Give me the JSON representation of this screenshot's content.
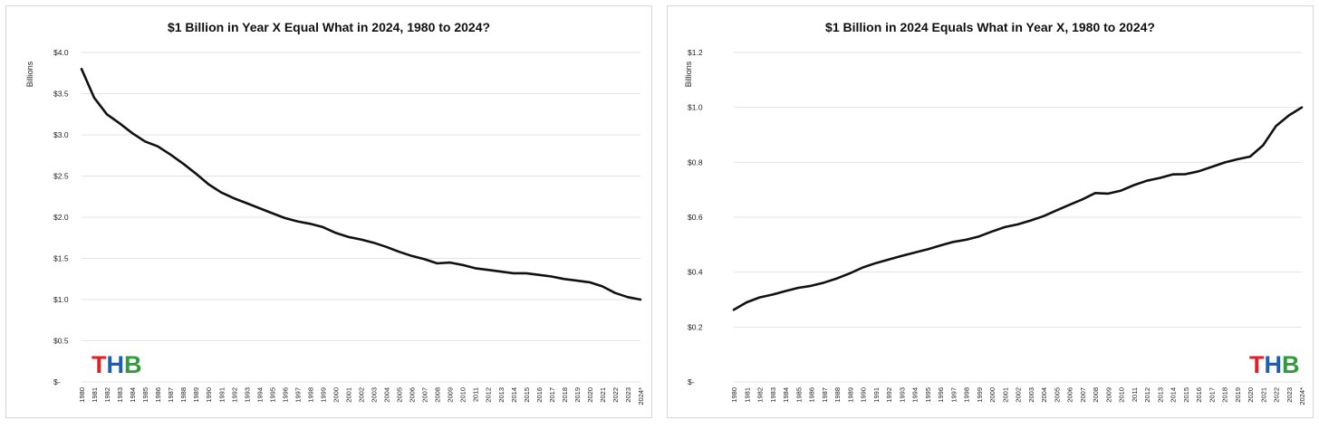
{
  "chart_data": [
    {
      "type": "line",
      "title": "$1 Billion in Year X Equal What in 2024, 1980 to 2024?",
      "ylabel": "Billions",
      "xlabel": "",
      "ylim": [
        0,
        4
      ],
      "yticks": [
        0,
        0.5,
        1.0,
        1.5,
        2.0,
        2.5,
        3.0,
        3.5,
        4.0
      ],
      "ytick_labels": [
        "$-",
        "$0.5",
        "$1.0",
        "$1.5",
        "$2.0",
        "$2.5",
        "$3.0",
        "$3.5",
        "$4.0"
      ],
      "x": [
        "1980",
        "1981",
        "1982",
        "1983",
        "1984",
        "1985",
        "1986",
        "1987",
        "1988",
        "1989",
        "1990",
        "1991",
        "1992",
        "1993",
        "1994",
        "1995",
        "1996",
        "1997",
        "1998",
        "1999",
        "2000",
        "2001",
        "2002",
        "2003",
        "2004",
        "2005",
        "2006",
        "2007",
        "2008",
        "2009",
        "2010",
        "2011",
        "2012",
        "2013",
        "2014",
        "2015",
        "2016",
        "2017",
        "2018",
        "2019",
        "2020",
        "2021",
        "2022",
        "2023",
        "2024*"
      ],
      "grid": true,
      "series": [
        {
          "values": [
            3.8,
            3.45,
            3.25,
            3.14,
            3.02,
            2.92,
            2.86,
            2.76,
            2.65,
            2.53,
            2.4,
            2.3,
            2.23,
            2.17,
            2.11,
            2.05,
            1.99,
            1.95,
            1.92,
            1.88,
            1.81,
            1.76,
            1.73,
            1.69,
            1.64,
            1.58,
            1.53,
            1.49,
            1.44,
            1.45,
            1.42,
            1.38,
            1.36,
            1.34,
            1.32,
            1.32,
            1.3,
            1.28,
            1.25,
            1.23,
            1.21,
            1.16,
            1.08,
            1.03,
            1.0
          ]
        }
      ],
      "logo": {
        "letters": [
          "T",
          "H",
          "B"
        ],
        "colors": [
          "#e31e24",
          "#1a5fb4",
          "#2e9d3a"
        ],
        "position": "bottom-left"
      }
    },
    {
      "type": "line",
      "title": "$1 Billion in 2024 Equals What in Year X, 1980 to 2024?",
      "ylabel": "Billions",
      "xlabel": "",
      "ylim": [
        0,
        1.2
      ],
      "yticks": [
        0,
        0.2,
        0.4,
        0.6,
        0.8,
        1.0,
        1.2
      ],
      "ytick_labels": [
        "$-",
        "$0.2",
        "$0.4",
        "$0.6",
        "$0.8",
        "$1.0",
        "$1.2"
      ],
      "x": [
        "1980",
        "1981",
        "1982",
        "1983",
        "1984",
        "1985",
        "1986",
        "1987",
        "1988",
        "1989",
        "1990",
        "1991",
        "1992",
        "1993",
        "1994",
        "1995",
        "1996",
        "1997",
        "1998",
        "1999",
        "2000",
        "2001",
        "2002",
        "2003",
        "2004",
        "2005",
        "2006",
        "2007",
        "2008",
        "2009",
        "2010",
        "2011",
        "2012",
        "2013",
        "2014",
        "2015",
        "2016",
        "2017",
        "2018",
        "2019",
        "2020",
        "2021",
        "2022",
        "2023",
        "2024*"
      ],
      "grid": true,
      "series": [
        {
          "values": [
            0.263,
            0.29,
            0.308,
            0.318,
            0.331,
            0.343,
            0.35,
            0.362,
            0.377,
            0.396,
            0.417,
            0.433,
            0.446,
            0.459,
            0.471,
            0.483,
            0.497,
            0.51,
            0.518,
            0.53,
            0.548,
            0.564,
            0.574,
            0.588,
            0.604,
            0.625,
            0.645,
            0.665,
            0.688,
            0.686,
            0.697,
            0.717,
            0.733,
            0.743,
            0.756,
            0.757,
            0.767,
            0.783,
            0.799,
            0.811,
            0.821,
            0.862,
            0.932,
            0.971,
            1.0
          ]
        }
      ],
      "logo": {
        "letters": [
          "T",
          "H",
          "B"
        ],
        "colors": [
          "#e31e24",
          "#1a5fb4",
          "#2e9d3a"
        ],
        "position": "bottom-right"
      }
    }
  ]
}
